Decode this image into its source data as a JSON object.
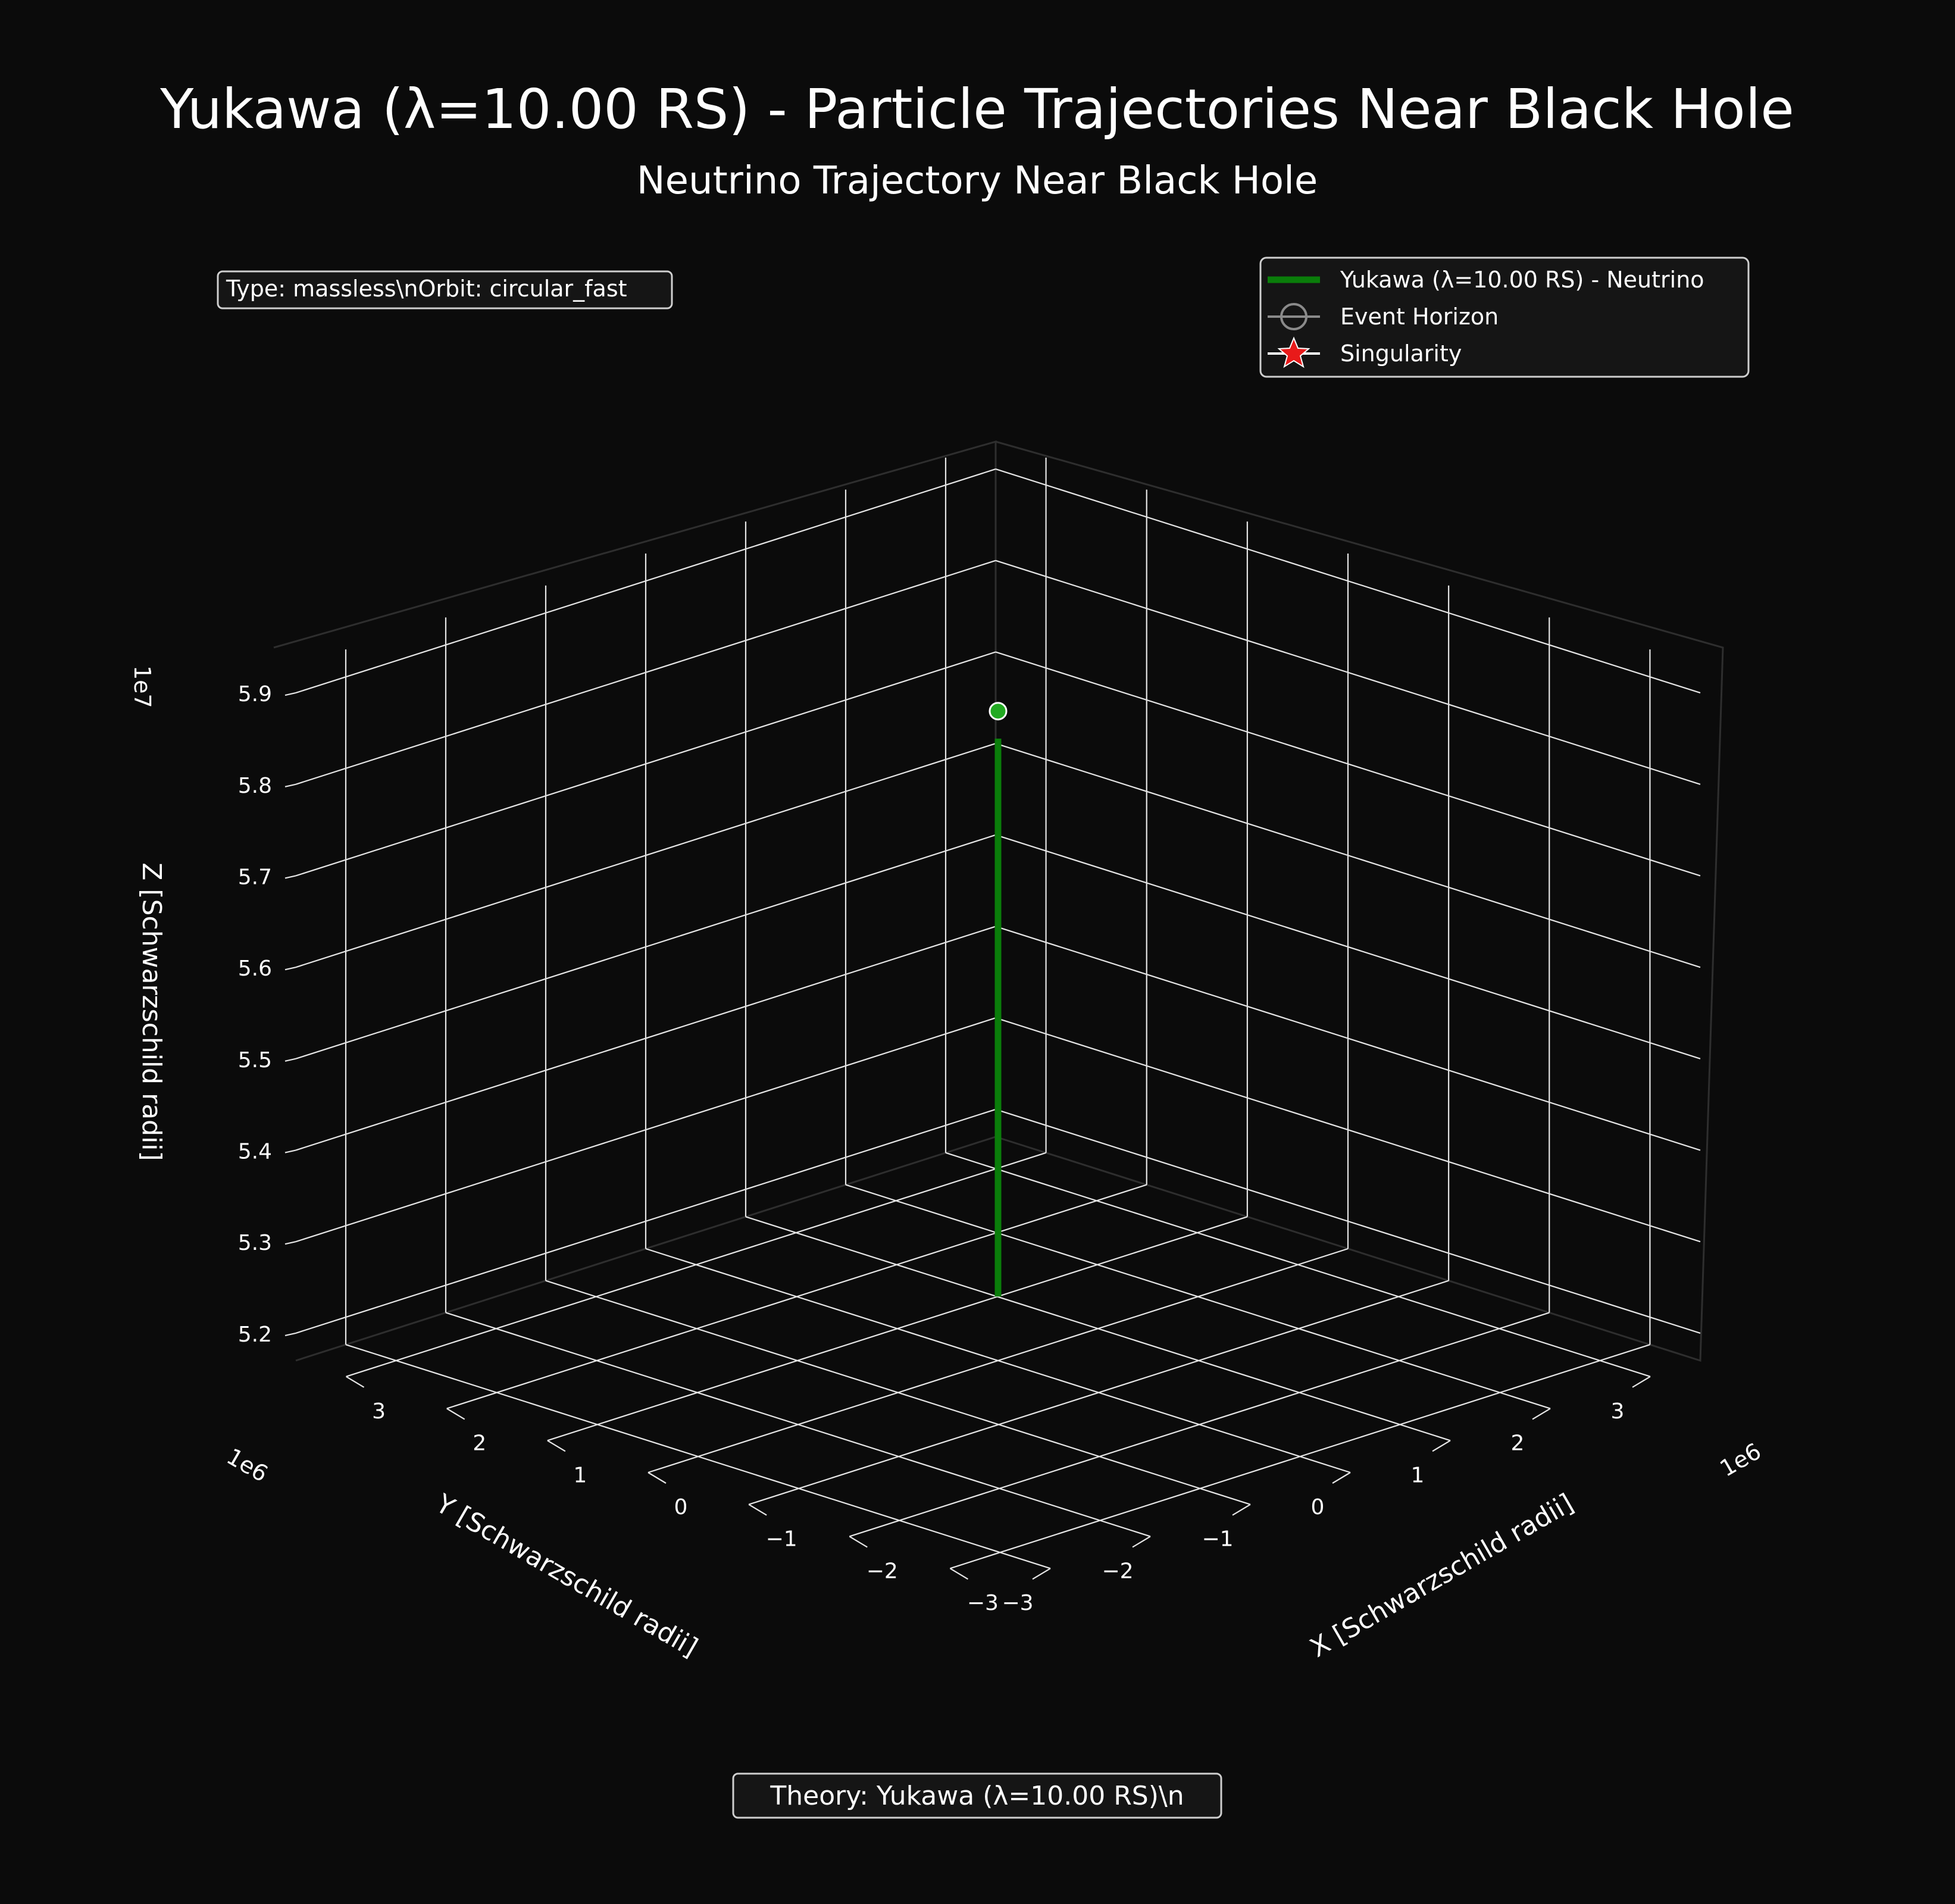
{
  "figure": {
    "title": "Yukawa (λ=10.00 RS) - Particle Trajectories Near Black Hole",
    "subtitle": "Neutrino Trajectory Near Black Hole",
    "info_box": "Type: massless\\nOrbit: circular_fast",
    "theory_box": "Theory: Yukawa (λ=10.00 RS)\\n",
    "background": "#0b0b0b"
  },
  "chart_data": {
    "type": "line3d",
    "xlabel": "X [Schwarzschild radii]",
    "ylabel": "Y [Schwarzschild radii]",
    "zlabel": "Z [Schwarzschild radii]",
    "x_ticks": [
      "−3",
      "−2",
      "−1",
      "0",
      "1",
      "2",
      "3"
    ],
    "y_ticks": [
      "−3",
      "−2",
      "−1",
      "0",
      "1",
      "2",
      "3"
    ],
    "z_ticks": [
      "5.2",
      "5.3",
      "5.4",
      "5.5",
      "5.6",
      "5.7",
      "5.8",
      "5.9"
    ],
    "x_offset": "1e6",
    "y_offset": "1e6",
    "z_offset": "1e7",
    "xlim": [
      -3500000,
      3500000
    ],
    "ylim": [
      -3500000,
      3500000
    ],
    "zlim": [
      51700000,
      59300000
    ],
    "grid": true,
    "legend": {
      "position": "upper right",
      "entries": [
        {
          "label": "Yukawa (λ=10.00 RS) - Neutrino",
          "marker": "line",
          "color": "#0a7d0a"
        },
        {
          "label": "Event Horizon",
          "marker": "circle",
          "color": "#888888"
        },
        {
          "label": "Singularity",
          "marker": "star",
          "color": "#e81a1a"
        }
      ]
    },
    "series": [
      {
        "name": "Yukawa (λ=10.00 RS) - Neutrino",
        "color": "#0a7d0a",
        "x": [
          0,
          0
        ],
        "y": [
          0,
          0
        ],
        "z": [
          52400000,
          58500000
        ]
      }
    ],
    "current_point": {
      "x": 0,
      "y": 0,
      "z": 58800000,
      "color": "#22aa22"
    }
  }
}
